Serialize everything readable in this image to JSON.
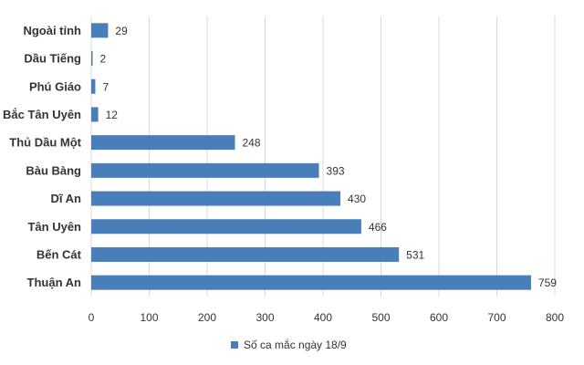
{
  "chart_data": {
    "type": "bar",
    "orientation": "horizontal",
    "categories": [
      "Ngoài tỉnh",
      "Dầu Tiếng",
      "Phú Giáo",
      "Bắc Tân Uyên",
      "Thủ Dầu Một",
      "Bàu Bàng",
      "Dĩ An",
      "Tân Uyên",
      "Bến Cát",
      "Thuận An"
    ],
    "series": [
      {
        "name": "Số ca mắc ngày 18/9",
        "values": [
          29,
          2,
          7,
          12,
          248,
          393,
          430,
          466,
          531,
          759
        ]
      }
    ],
    "xlim": [
      0,
      800
    ],
    "x_ticks": [
      0,
      100,
      200,
      300,
      400,
      500,
      600,
      700,
      800
    ],
    "grid": true,
    "legend_position": "bottom",
    "data_labels": true,
    "bar_color": "#4a7ebb"
  }
}
